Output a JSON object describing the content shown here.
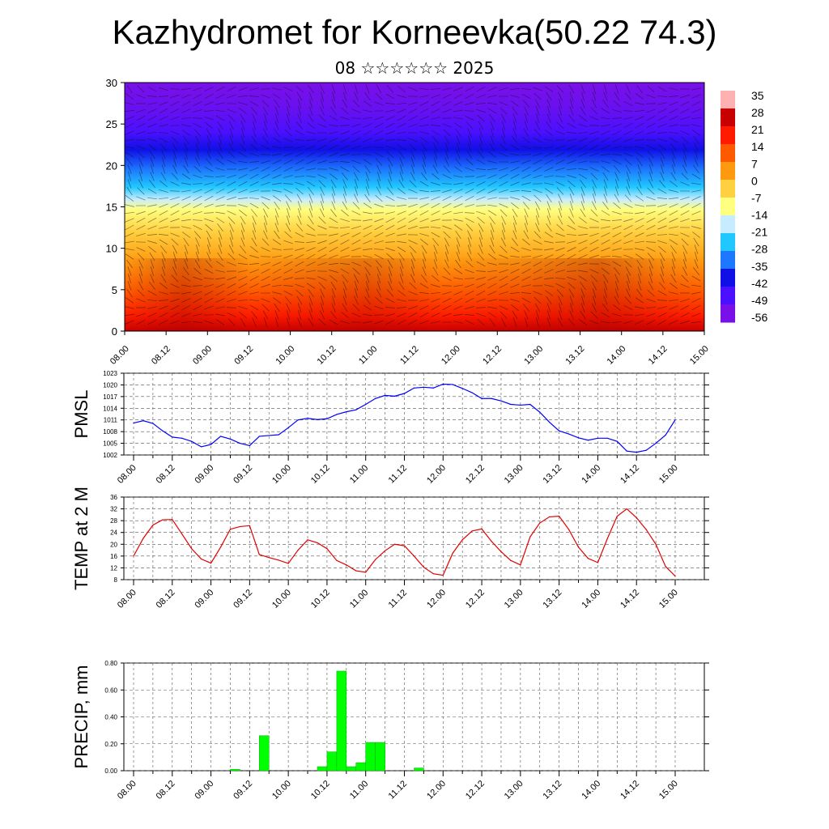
{
  "header": {
    "title": "Kazhydromet for Korneevka(50.22 74.3)",
    "subtitle": "08 ☆☆☆☆☆☆ 2025"
  },
  "colors": {
    "pmsl_line": "#0000ff",
    "temp_line": "#e00000",
    "precip_bar": "#00ff00",
    "colormap": [
      "#7a10e8",
      "#4a10ff",
      "#1010e6",
      "#1e78ff",
      "#20c8ff",
      "#c8ecff",
      "#ffff80",
      "#ffd040",
      "#ff9a10",
      "#ff5a00",
      "#ff1a00",
      "#c80000",
      "#ffb0b0"
    ]
  },
  "chart_data": [
    {
      "type": "heatmap",
      "title": "",
      "ylim": [
        0,
        30
      ],
      "yticks": [
        "0",
        "5",
        "10",
        "15",
        "20",
        "25",
        "30"
      ],
      "xtick_labels": [
        "08.00",
        "08.12",
        "09.00",
        "09.12",
        "10.00",
        "10.12",
        "11.00",
        "11.12",
        "12.00",
        "12.12",
        "13.00",
        "13.12",
        "14.00",
        "14.12",
        "15.00"
      ],
      "colorbar_labels": [
        "35",
        "28",
        "21",
        "14",
        "7",
        "0",
        "-7",
        "-14",
        "-21",
        "-28",
        "-35",
        "-42",
        "-49",
        "-56"
      ],
      "overlay": "wind barbs"
    },
    {
      "type": "line",
      "ylabel": "PMSL",
      "ylim": [
        1002,
        1023
      ],
      "yticks": [
        "1002",
        "1005",
        "1008",
        "1011",
        "1014",
        "1017",
        "1020",
        "1023"
      ],
      "xtick_labels": [
        "08.00",
        "08.12",
        "09.00",
        "09.12",
        "10.00",
        "10.12",
        "11.00",
        "11.12",
        "12.00",
        "12.12",
        "13.00",
        "13.12",
        "14.00",
        "14.12",
        "15.00"
      ],
      "x_hours": [
        0,
        3,
        6,
        9,
        12,
        15,
        18,
        21,
        24,
        27,
        30,
        33,
        36,
        39,
        42,
        45,
        48,
        51,
        54,
        57,
        60,
        63,
        66,
        69,
        72,
        75,
        78,
        81,
        84,
        87,
        90,
        93,
        96,
        99,
        102,
        105,
        108,
        111,
        114,
        117,
        120,
        123,
        126,
        129,
        132,
        135,
        138,
        141,
        144,
        147,
        150,
        153,
        156,
        159,
        162,
        165,
        168
      ],
      "series": [
        {
          "values": [
            1010.2,
            1010.8,
            1010.1,
            1008.2,
            1006.6,
            1006.3,
            1005.5,
            1004.1,
            1004.7,
            1006.8,
            1006.1,
            1005,
            1004.4,
            1006.8,
            1007,
            1007.2,
            1009,
            1011,
            1011.4,
            1011.1,
            1011.3,
            1012.4,
            1013.1,
            1013.6,
            1015,
            1016.5,
            1017.3,
            1017.1,
            1017.8,
            1019.2,
            1019.4,
            1019.2,
            1020.2,
            1020.1,
            1019.1,
            1018,
            1016.5,
            1016.5,
            1015.9,
            1015,
            1014.8,
            1015,
            1013,
            1010.4,
            1008.2,
            1007.4,
            1006.4,
            1005.8,
            1006.3,
            1006.3,
            1005.5,
            1003,
            1002.7,
            1003.2,
            1005,
            1007.1,
            1011
          ]
        }
      ]
    },
    {
      "type": "line",
      "ylabel": "TEMP at 2 M",
      "ylim": [
        8,
        36
      ],
      "yticks": [
        "8",
        "12",
        "16",
        "20",
        "24",
        "28",
        "32",
        "36"
      ],
      "xtick_labels": [
        "08.00",
        "08.12",
        "09.00",
        "09.12",
        "10.00",
        "10.12",
        "11.00",
        "11.12",
        "12.00",
        "12.12",
        "13.00",
        "13.12",
        "14.00",
        "14.12",
        "15.00"
      ],
      "x_hours": [
        0,
        3,
        6,
        9,
        12,
        15,
        18,
        21,
        24,
        27,
        30,
        33,
        36,
        39,
        42,
        45,
        48,
        51,
        54,
        57,
        60,
        63,
        66,
        69,
        72,
        75,
        78,
        81,
        84,
        87,
        90,
        93,
        96,
        99,
        102,
        105,
        108,
        111,
        114,
        117,
        120,
        123,
        126,
        129,
        132,
        135,
        138,
        141,
        144,
        147,
        150,
        153,
        156,
        159,
        162,
        165,
        168
      ],
      "series": [
        {
          "values": [
            16,
            22,
            26.5,
            28.3,
            28.4,
            23.5,
            18.5,
            15,
            13.6,
            19,
            25.1,
            26,
            26.3,
            16.5,
            15.5,
            14.6,
            13.5,
            18,
            21.5,
            20.5,
            18.5,
            14.5,
            13,
            11,
            10.5,
            14.8,
            17.8,
            20,
            19.5,
            16,
            12.2,
            10,
            9.5,
            17,
            21.5,
            24.5,
            25.2,
            21,
            17.5,
            14.5,
            13,
            22.5,
            27.2,
            29.3,
            29.5,
            25,
            19,
            15.2,
            13.8,
            22,
            29.5,
            32,
            29,
            25,
            20,
            12.5,
            9.2
          ]
        }
      ]
    },
    {
      "type": "bar",
      "ylabel": "PRECIP, mm",
      "ylim": [
        0,
        0.8
      ],
      "yticks": [
        "0.00",
        "0.20",
        "0.40",
        "0.60",
        "0.80"
      ],
      "xtick_labels": [
        "08.00",
        "08.12",
        "09.00",
        "09.12",
        "10.00",
        "10.12",
        "11.00",
        "11.12",
        "12.00",
        "12.12",
        "13.00",
        "13.12",
        "14.00",
        "14.12",
        "15.00"
      ],
      "bars": [
        {
          "hour": 30,
          "value": 0.01
        },
        {
          "hour": 39,
          "value": 0.26
        },
        {
          "hour": 57,
          "value": 0.03
        },
        {
          "hour": 60,
          "value": 0.14
        },
        {
          "hour": 63,
          "value": 0.74
        },
        {
          "hour": 66,
          "value": 0.03
        },
        {
          "hour": 69,
          "value": 0.06
        },
        {
          "hour": 72,
          "value": 0.21
        },
        {
          "hour": 75,
          "value": 0.21
        },
        {
          "hour": 87,
          "value": 0.02
        }
      ]
    }
  ]
}
